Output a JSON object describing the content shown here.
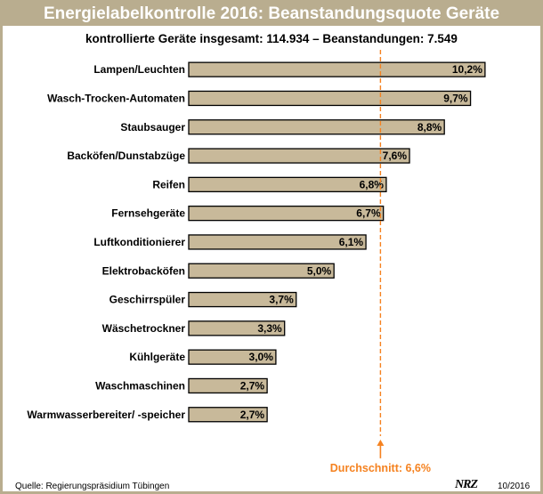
{
  "header": {
    "title": "Energielabelkontrolle 2016: Beanstandungsquote Geräte",
    "subtitle": "kontrollierte Geräte insgesamt: 114.934 – Beanstandungen: 7.549"
  },
  "footer": {
    "source": "Quelle: Regierungspräsidium Tübingen",
    "logo": "NRZ",
    "issue": "10/2016"
  },
  "colors": {
    "frame": "#b9ad8f",
    "bar": "#c8b99a",
    "average": "#f58220"
  },
  "chart_data": {
    "type": "bar",
    "orientation": "horizontal",
    "categories": [
      "Lampen/Leuchten",
      "Wasch-Trocken-Automaten",
      "Staubsauger",
      "Backöfen/Dunstabzüge",
      "Reifen",
      "Fernsehgeräte",
      "Luftkonditionierer",
      "Elektrobacköfen",
      "Geschirrspüler",
      "Wäschetrockner",
      "Kühlgeräte",
      "Waschmaschinen",
      "Warmwasserbereiter/ -speicher"
    ],
    "values": [
      10.2,
      9.7,
      8.8,
      7.6,
      6.8,
      6.7,
      6.1,
      5.0,
      3.7,
      3.3,
      3.0,
      2.7,
      2.7
    ],
    "value_labels": [
      "10,2%",
      "9,7%",
      "8,8%",
      "7,6%",
      "6,8%",
      "6,7%",
      "6,1%",
      "5,0%",
      "3,7%",
      "3,3%",
      "3,0%",
      "2,7%",
      "2,7%"
    ],
    "average": {
      "value": 6.6,
      "label": "Durchschnitt: 6,6%"
    },
    "xlim": [
      0,
      11
    ],
    "grid": false,
    "legend": "none"
  }
}
